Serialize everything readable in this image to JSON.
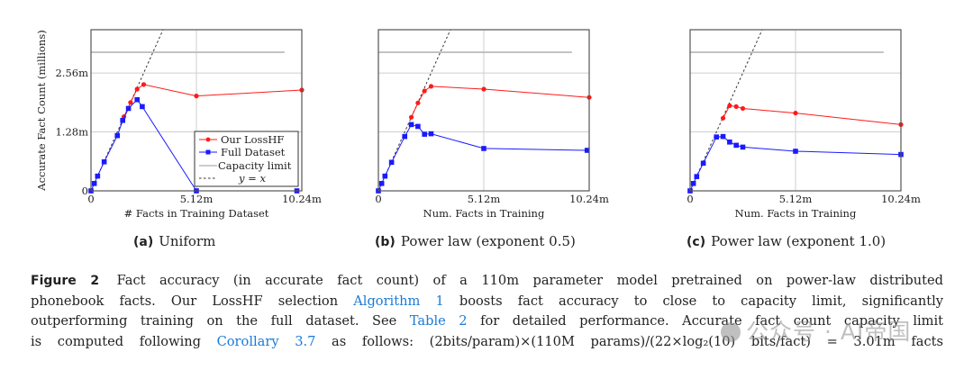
{
  "chart_data": [
    {
      "type": "line",
      "id": "a",
      "subcaption_tag": "(a)",
      "subcaption_text": "Uniform",
      "xlabel": "# Facts in Training Dataset",
      "ylabel": "Accurate Fact Count (millions)",
      "xlim": [
        0,
        10.24
      ],
      "ylim": [
        0,
        3.5
      ],
      "xticks": [
        0,
        5.12,
        10.24
      ],
      "xtick_labels": [
        "0",
        "5.12m",
        "10.24m"
      ],
      "yticks": [
        0,
        1.28,
        2.56
      ],
      "ytick_labels": [
        "0",
        "1.28m",
        "2.56m"
      ],
      "show_ytick_labels": true,
      "grid": true,
      "legend": "bottom-right",
      "capacity_limit": 3.01,
      "capacity_x_range": [
        0,
        9.4
      ],
      "series": [
        {
          "name": "Our LossHF",
          "color": "#ff1a1a",
          "marker": "circle",
          "x": [
            1.6,
            1.92,
            2.24,
            2.56,
            5.12,
            10.24
          ],
          "y": [
            1.61,
            1.92,
            2.21,
            2.31,
            2.06,
            2.19
          ]
        },
        {
          "name": "Full Dataset",
          "color": "#1a1aff",
          "marker": "square",
          "x": [
            0,
            0.16,
            0.32,
            0.64,
            1.28,
            1.54,
            1.82,
            2.24,
            2.49,
            5.12,
            10.0
          ],
          "y": [
            0,
            0.16,
            0.32,
            0.63,
            1.2,
            1.53,
            1.79,
            1.98,
            1.83,
            0,
            0
          ]
        }
      ]
    },
    {
      "type": "line",
      "id": "b",
      "subcaption_tag": "(b)",
      "subcaption_text": "Power law (exponent 0.5)",
      "xlabel": "Num. Facts in Training",
      "ylabel": "",
      "xlim": [
        0,
        10.24
      ],
      "ylim": [
        0,
        3.5
      ],
      "xticks": [
        0,
        5.12,
        10.24
      ],
      "xtick_labels": [
        "0",
        "5.12m",
        "10.24m"
      ],
      "yticks": [
        0,
        1.28,
        2.56
      ],
      "ytick_labels": [
        "",
        "",
        ""
      ],
      "show_ytick_labels": false,
      "grid": true,
      "legend": "none",
      "capacity_limit": 3.01,
      "capacity_x_range": [
        0,
        9.4
      ],
      "series": [
        {
          "name": "Our LossHF",
          "color": "#ff1a1a",
          "marker": "circle",
          "x": [
            1.6,
            1.92,
            2.24,
            2.56,
            5.12,
            10.24
          ],
          "y": [
            1.6,
            1.91,
            2.17,
            2.27,
            2.21,
            2.03
          ]
        },
        {
          "name": "Full Dataset",
          "color": "#1a1aff",
          "marker": "square",
          "x": [
            0,
            0.16,
            0.32,
            0.64,
            1.28,
            1.6,
            1.92,
            2.24,
            2.56,
            5.12,
            10.14
          ],
          "y": [
            0,
            0.16,
            0.32,
            0.62,
            1.18,
            1.44,
            1.4,
            1.23,
            1.24,
            0.92,
            0.88
          ]
        }
      ]
    },
    {
      "type": "line",
      "id": "c",
      "subcaption_tag": "(c)",
      "subcaption_text": "Power law (exponent 1.0)",
      "xlabel": "Num. Facts in Training",
      "ylabel": "",
      "xlim": [
        0,
        10.24
      ],
      "ylim": [
        0,
        3.5
      ],
      "xticks": [
        0,
        5.12,
        10.24
      ],
      "xtick_labels": [
        "0",
        "5.12m",
        "10.24m"
      ],
      "yticks": [
        0,
        1.28,
        2.56
      ],
      "ytick_labels": [
        "",
        "",
        ""
      ],
      "show_ytick_labels": false,
      "grid": true,
      "legend": "none",
      "capacity_limit": 3.01,
      "capacity_x_range": [
        0,
        9.4
      ],
      "series": [
        {
          "name": "Our LossHF",
          "color": "#ff1a1a",
          "marker": "circle",
          "x": [
            1.6,
            1.92,
            2.24,
            2.56,
            5.12,
            10.24
          ],
          "y": [
            1.58,
            1.85,
            1.83,
            1.79,
            1.69,
            1.44
          ]
        },
        {
          "name": "Full Dataset",
          "color": "#1a1aff",
          "marker": "square",
          "x": [
            0,
            0.16,
            0.32,
            0.64,
            1.28,
            1.6,
            1.92,
            2.24,
            2.56,
            5.12,
            10.24
          ],
          "y": [
            0,
            0.16,
            0.31,
            0.6,
            1.17,
            1.18,
            1.06,
            0.99,
            0.95,
            0.86,
            0.79
          ]
        }
      ]
    }
  ],
  "legend": {
    "items": [
      {
        "label": "Our LossHF",
        "style": "red-circle-line",
        "color": "#ff1a1a"
      },
      {
        "label": "Full Dataset",
        "style": "blue-square-line",
        "color": "#1a1aff"
      },
      {
        "label": "Capacity limit",
        "style": "solid-gray",
        "color": "#aaaaaa"
      },
      {
        "label": "y = x",
        "style": "dashed-black",
        "color": "#333333"
      }
    ]
  },
  "caption": {
    "figure_label": "Figure 2",
    "line1": "Fact accuracy (in accurate fact count) of a 110m parameter model pretrained on power-law distributed",
    "line2_pre": "phonebook facts. Our LossHF selection",
    "line2_link": "Algorithm 1",
    "line2_post": "boosts fact accuracy to close to capacity limit, significantly",
    "line3_pre": "outperforming training on the full dataset. See",
    "line3_link": "Table 2",
    "line3_post": "for detailed performance. Accurate fact count capacity limit",
    "line4_pre": "is computed following",
    "line4_link": "Corollary 3.7",
    "line4_post": "as follows: (2bits/param)×(110M params)/(22×log₂(10) bits/fact) = 3.01m facts",
    "link_color": "#1a7ad6"
  },
  "watermark": {
    "text": "公众号 · AI帝国"
  }
}
